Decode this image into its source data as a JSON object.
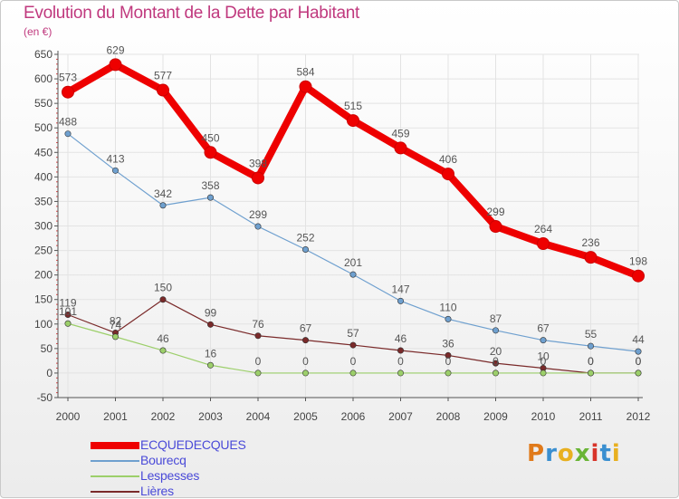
{
  "chart": {
    "title": "Evolution du Montant de la Dette par Habitant",
    "unit_label": "(en €)"
  },
  "logo": {
    "text": "Proxiti"
  },
  "colors": {
    "title": "#c0397e",
    "axis": "#555555",
    "grid": "#e3e3e3",
    "legend_text": "#4a4ad8"
  },
  "chart_data": {
    "type": "line",
    "title": "Evolution du Montant de la Dette par Habitant",
    "ylabel": "(en €)",
    "xlabel": "",
    "x": [
      "2000",
      "2001",
      "2002",
      "2003",
      "2004",
      "2005",
      "2006",
      "2007",
      "2008",
      "2009",
      "2010",
      "2011",
      "2012"
    ],
    "ylim": [
      -50,
      650
    ],
    "yticks": [
      -50,
      0,
      50,
      100,
      150,
      200,
      250,
      300,
      350,
      400,
      450,
      500,
      550,
      600,
      650
    ],
    "grid": true,
    "legend_position": "bottom-left",
    "series": [
      {
        "name": "ECQUEDECQUES",
        "color": "#ee0000",
        "values": [
          573,
          629,
          577,
          450,
          398,
          584,
          515,
          459,
          406,
          299,
          264,
          236,
          198
        ],
        "labels": [
          "573",
          "629",
          "577",
          "450",
          "398",
          "584",
          "515",
          "459",
          "406",
          "299",
          "264",
          "236",
          "198"
        ]
      },
      {
        "name": "Bourecq",
        "color": "#6fa0cf",
        "values": [
          488,
          413,
          342,
          358,
          299,
          252,
          201,
          147,
          110,
          87,
          67,
          55,
          44
        ],
        "labels": [
          "488",
          "413",
          "342",
          "358",
          "299",
          "252",
          "201",
          "147",
          "110",
          "87",
          "67",
          "55",
          "44"
        ]
      },
      {
        "name": "Lespesses",
        "color": "#9ccf6a",
        "values": [
          101,
          74,
          46,
          16,
          0,
          0,
          0,
          0,
          0,
          0,
          0,
          0,
          0
        ],
        "labels": [
          "101",
          "74",
          "46",
          "16",
          "0",
          "0",
          "0",
          "0",
          "0",
          "0",
          "0",
          "0",
          "0"
        ]
      },
      {
        "name": "Lières",
        "color": "#7a2a2a",
        "values": [
          119,
          82,
          150,
          99,
          76,
          67,
          57,
          46,
          36,
          20,
          10,
          0,
          0
        ],
        "labels": [
          "119",
          "82",
          "150",
          "99",
          "76",
          "67",
          "57",
          "46",
          "36",
          "20",
          "10",
          "0",
          "0"
        ]
      }
    ]
  }
}
